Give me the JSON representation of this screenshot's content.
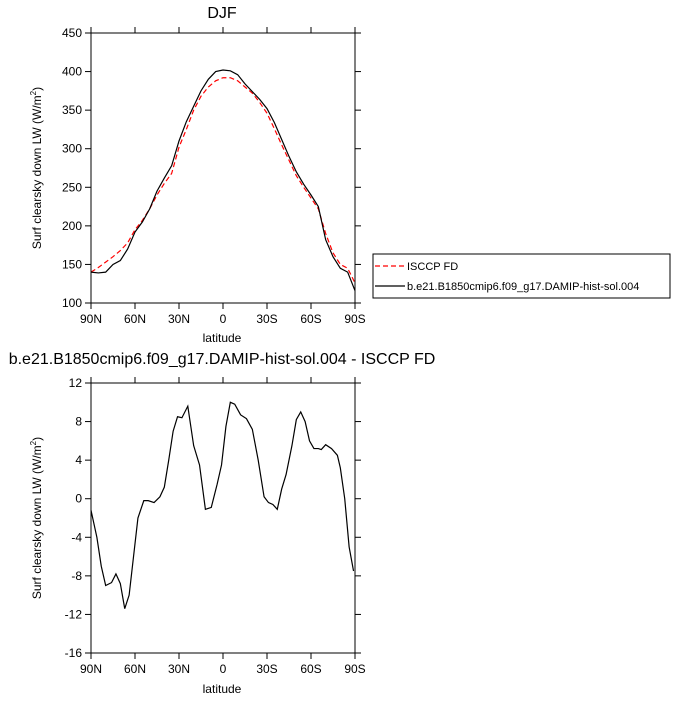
{
  "chart_data": [
    {
      "type": "line",
      "title": "DJF",
      "xlabel": "latitude",
      "ylabel": "Surf clearsky down LW (W/m",
      "ylabel_sup": "2",
      "ylabel_close": ")",
      "ylim": [
        100,
        450
      ],
      "yticks": [
        100,
        150,
        200,
        250,
        300,
        350,
        400,
        450
      ],
      "xlim": [
        90,
        -90
      ],
      "xticks": [
        90,
        60,
        30,
        0,
        -30,
        -60,
        -90
      ],
      "xtick_labels": [
        "90N",
        "60N",
        "30N",
        "0",
        "30S",
        "60S",
        "90S"
      ],
      "legend": {
        "position": "right",
        "entries": [
          {
            "label": "ISCCP FD",
            "color": "#ff0000",
            "dash": true
          },
          {
            "label": "b.e21.B1850cmip6.f09_g17.DAMIP-hist-sol.004",
            "color": "#000000",
            "dash": false
          }
        ]
      },
      "series": [
        {
          "name": "ISCCP FD",
          "color": "#ff0000",
          "x": [
            90,
            85,
            80,
            75,
            70,
            65,
            60,
            55,
            50,
            45,
            40,
            35,
            30,
            25,
            20,
            15,
            10,
            5,
            0,
            -5,
            -10,
            -15,
            -20,
            -25,
            -30,
            -35,
            -40,
            -45,
            -50,
            -55,
            -60,
            -65,
            -70,
            -75,
            -80,
            -85,
            -90
          ],
          "values": [
            140,
            146,
            153,
            160,
            168,
            178,
            195,
            207,
            222,
            240,
            255,
            268,
            302,
            325,
            350,
            368,
            380,
            388,
            392,
            392,
            388,
            380,
            372,
            360,
            346,
            326,
            305,
            285,
            265,
            250,
            236,
            222,
            190,
            165,
            150,
            145,
            126
          ]
        },
        {
          "name": "b.e21.B1850cmip6.f09_g17.DAMIP-hist-sol.004",
          "color": "#000000",
          "x": [
            90,
            85,
            80,
            75,
            70,
            65,
            60,
            55,
            50,
            45,
            40,
            35,
            30,
            25,
            20,
            15,
            10,
            5,
            0,
            -5,
            -10,
            -15,
            -20,
            -25,
            -30,
            -35,
            -40,
            -45,
            -50,
            -55,
            -60,
            -65,
            -70,
            -75,
            -80,
            -85,
            -90
          ],
          "values": [
            140,
            139,
            140,
            150,
            155,
            170,
            192,
            205,
            222,
            245,
            262,
            278,
            310,
            335,
            355,
            375,
            390,
            400,
            402,
            401,
            396,
            384,
            374,
            364,
            352,
            334,
            312,
            290,
            270,
            254,
            240,
            225,
            182,
            160,
            145,
            140,
            116
          ]
        }
      ]
    },
    {
      "type": "line",
      "title": "b.e21.B1850cmip6.f09_g17.DAMIP-hist-sol.004 - ISCCP FD",
      "xlabel": "latitude",
      "ylabel": "Surf clearsky down LW (W/m",
      "ylabel_sup": "2",
      "ylabel_close": ")",
      "ylim": [
        -16,
        12
      ],
      "yticks": [
        -16,
        -12,
        -8,
        -4,
        0,
        4,
        8,
        12
      ],
      "xlim": [
        90,
        -90
      ],
      "xticks": [
        90,
        60,
        30,
        0,
        -30,
        -60,
        -90
      ],
      "xtick_labels": [
        "90N",
        "60N",
        "30N",
        "0",
        "30S",
        "60S",
        "90S"
      ],
      "series": [
        {
          "name": "difference",
          "color": "#000000",
          "x": [
            90,
            86,
            83,
            80,
            76,
            73,
            70,
            67,
            64,
            61,
            58,
            54,
            51,
            47,
            43,
            40,
            37,
            34,
            31,
            28,
            24,
            20,
            16,
            12,
            8,
            4,
            1,
            -2,
            -5,
            -8,
            -12,
            -16,
            -20,
            -24,
            -28,
            -31,
            -34,
            -37,
            -40,
            -43,
            -47,
            -50,
            -53,
            -56,
            -59,
            -62,
            -65,
            -67,
            -70,
            -74,
            -78,
            -80,
            -83,
            -86,
            -89
          ],
          "values": [
            -1.2,
            -4,
            -7,
            -9,
            -8.7,
            -7.8,
            -8.8,
            -11.4,
            -10,
            -6,
            -2,
            -0.2,
            -0.2,
            -0.4,
            0.2,
            1.2,
            4,
            7,
            8.5,
            8.4,
            9.6,
            5.5,
            3.5,
            -1.1,
            -0.9,
            1.5,
            3.5,
            7.5,
            10,
            9.8,
            8.7,
            8.3,
            7.2,
            4,
            0.2,
            -0.4,
            -0.6,
            -1.1,
            1,
            2.5,
            5.5,
            8.2,
            9,
            8,
            6,
            5.2,
            5.2,
            5.1,
            5.6,
            5.2,
            4.5,
            3.2,
            0,
            -5,
            -7.5
          ]
        }
      ]
    }
  ]
}
